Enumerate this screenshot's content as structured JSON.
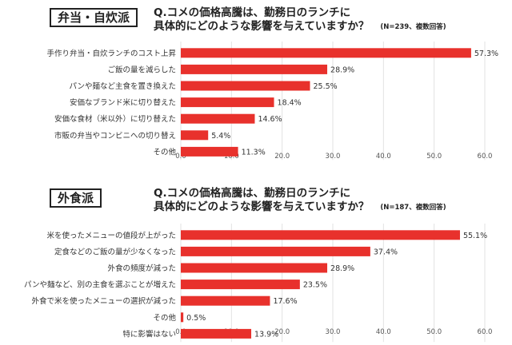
{
  "colors": {
    "bar": "#e8312c",
    "grid": "#e2e2e2",
    "text": "#333333"
  },
  "chart_data": [
    {
      "type": "bar",
      "orientation": "horizontal",
      "group_label": "弁当・自炊派",
      "title_line1": "Q.コメの価格高騰は、勤務日のランチに",
      "title_line2": "具体的にどのような影響を与えていますか？",
      "note": "(N=239、複数回答)",
      "categories": [
        "手作り弁当・自炊ランチのコスト上昇",
        "ご飯の量を減らした",
        "パンや麺など主食を置き換えた",
        "安価なブランド米に切り替えた",
        "安価な食材（米以外）に切り替えた",
        "市販の弁当やコンビニへの切り替え",
        "その他"
      ],
      "values": [
        57.3,
        28.9,
        25.5,
        18.4,
        14.6,
        5.4,
        11.3
      ],
      "labels": [
        "57.3%",
        "28.9%",
        "25.5%",
        "18.4%",
        "14.6%",
        "5.4%",
        "11.3%"
      ],
      "xlim": [
        0,
        60
      ],
      "ticks": [
        "0.0",
        "10.0",
        "20.0",
        "30.0",
        "40.0",
        "50.0",
        "60.0"
      ]
    },
    {
      "type": "bar",
      "orientation": "horizontal",
      "group_label": "外食派",
      "title_line1": "Q.コメの価格高騰は、勤務日のランチに",
      "title_line2": "具体的にどのような影響を与えていますか？",
      "note": "(N=187、複数回答)",
      "categories": [
        "米を使ったメニューの値段が上がった",
        "定食などのご飯の量が少なくなった",
        "外食の頻度が減った",
        "パンや麺など、別の主食を選ぶことが増えた",
        "外食で米を使ったメニューの選択が減った",
        "その他",
        "特に影響はない"
      ],
      "values": [
        55.1,
        37.4,
        28.9,
        23.5,
        17.6,
        0.5,
        13.9
      ],
      "labels": [
        "55.1%",
        "37.4%",
        "28.9%",
        "23.5%",
        "17.6%",
        "0.5%",
        "13.9%"
      ],
      "xlim": [
        0,
        60
      ],
      "ticks": [
        "0.0",
        "10.0",
        "20.0",
        "30.0",
        "40.0",
        "50.0",
        "60.0"
      ]
    }
  ]
}
